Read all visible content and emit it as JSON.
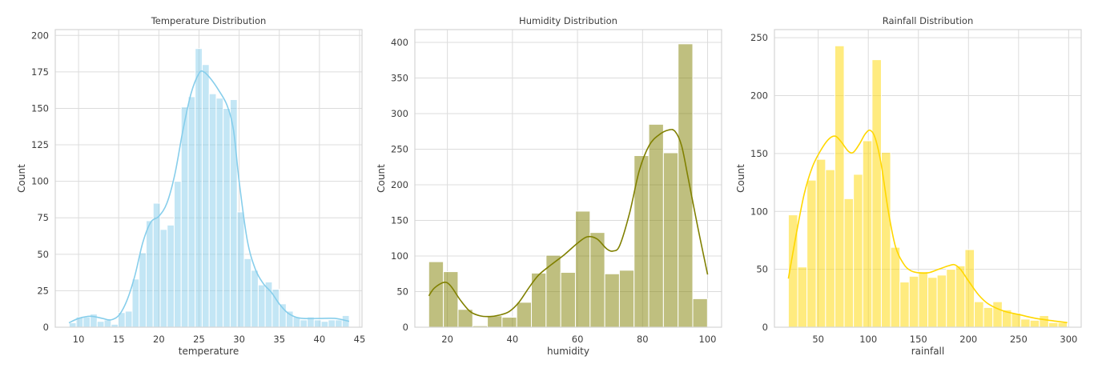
{
  "figure": {
    "panels": [
      "temperature",
      "humidity",
      "rainfall"
    ]
  },
  "chart_data": [
    {
      "id": "temperature",
      "type": "bar",
      "subtype": "histogram_with_kde",
      "title": "Temperature Distribution",
      "xlabel": "temperature",
      "ylabel": "Count",
      "xlim": [
        7.1,
        45.3
      ],
      "ylim": [
        0,
        204
      ],
      "xticks": [
        10,
        15,
        20,
        25,
        30,
        35,
        40,
        45
      ],
      "yticks": [
        0,
        25,
        50,
        75,
        100,
        125,
        150,
        175,
        200
      ],
      "grid": true,
      "bar_color": "#87ceeb",
      "line_color": "#87ceeb",
      "bin_start": 8.83,
      "bin_width": 0.872,
      "values": [
        3,
        7,
        7,
        9,
        4,
        5,
        2,
        10,
        11,
        33,
        51,
        73,
        85,
        67,
        70,
        100,
        151,
        158,
        191,
        180,
        160,
        157,
        150,
        156,
        79,
        47,
        39,
        29,
        31,
        26,
        16,
        11,
        7,
        5,
        7,
        5,
        4,
        5,
        5,
        8
      ],
      "kde": [
        [
          8.8,
          3
        ],
        [
          10,
          6
        ],
        [
          11.5,
          7.5
        ],
        [
          13,
          6
        ],
        [
          14,
          5
        ],
        [
          15,
          8
        ],
        [
          16,
          18
        ],
        [
          17,
          35
        ],
        [
          18,
          58
        ],
        [
          19,
          72
        ],
        [
          20,
          76
        ],
        [
          21,
          85
        ],
        [
          22,
          105
        ],
        [
          23,
          135
        ],
        [
          24,
          160
        ],
        [
          25,
          174
        ],
        [
          25.6,
          175
        ],
        [
          26.5,
          170
        ],
        [
          27.5,
          162
        ],
        [
          28.5,
          152
        ],
        [
          29.3,
          135
        ],
        [
          30,
          100
        ],
        [
          31,
          60
        ],
        [
          32,
          40
        ],
        [
          33,
          30
        ],
        [
          34,
          24
        ],
        [
          35,
          16
        ],
        [
          36,
          10
        ],
        [
          37,
          7
        ],
        [
          38,
          6
        ],
        [
          40,
          6
        ],
        [
          42,
          6
        ],
        [
          43.7,
          4
        ]
      ]
    },
    {
      "id": "humidity",
      "type": "bar",
      "subtype": "histogram_with_kde",
      "title": "Humidity Distribution",
      "xlabel": "humidity",
      "ylabel": "Count",
      "xlim": [
        10.0,
        104.3
      ],
      "ylim": [
        0,
        418
      ],
      "xticks": [
        20,
        40,
        60,
        80,
        100
      ],
      "yticks": [
        0,
        50,
        100,
        150,
        200,
        250,
        300,
        350,
        400
      ],
      "grid": true,
      "bar_color": "#808000",
      "line_color": "#808000",
      "bin_start": 14.26,
      "bin_width": 4.51,
      "values": [
        92,
        78,
        25,
        2,
        16,
        14,
        35,
        76,
        101,
        77,
        163,
        133,
        75,
        80,
        241,
        285,
        245,
        398,
        40
      ],
      "kde": [
        [
          14.3,
          44
        ],
        [
          16,
          55
        ],
        [
          19,
          63
        ],
        [
          21,
          58
        ],
        [
          24,
          38
        ],
        [
          27,
          22
        ],
        [
          30,
          16
        ],
        [
          33,
          15
        ],
        [
          36,
          17
        ],
        [
          39,
          22
        ],
        [
          42,
          35
        ],
        [
          45,
          55
        ],
        [
          48,
          73
        ],
        [
          52,
          88
        ],
        [
          56,
          102
        ],
        [
          60,
          118
        ],
        [
          63,
          127
        ],
        [
          66,
          124
        ],
        [
          69,
          110
        ],
        [
          71,
          107
        ],
        [
          73,
          115
        ],
        [
          76,
          160
        ],
        [
          79,
          220
        ],
        [
          82,
          255
        ],
        [
          85,
          270
        ],
        [
          88,
          277
        ],
        [
          90,
          275
        ],
        [
          92,
          255
        ],
        [
          94,
          210
        ],
        [
          97,
          140
        ],
        [
          100,
          74
        ]
      ]
    },
    {
      "id": "rainfall",
      "type": "bar",
      "subtype": "histogram_with_kde",
      "title": "Rainfall Distribution",
      "xlabel": "rainfall",
      "ylabel": "Count",
      "xlim": [
        6.3,
        312.5
      ],
      "ylim": [
        0,
        257
      ],
      "xticks": [
        50,
        100,
        150,
        200,
        250,
        300
      ],
      "yticks": [
        0,
        50,
        100,
        150,
        200,
        250
      ],
      "grid": true,
      "bar_color": "#ffd700",
      "line_color": "#ffd700",
      "bin_start": 20.21,
      "bin_width": 9.28,
      "values": [
        97,
        52,
        127,
        145,
        136,
        243,
        111,
        132,
        161,
        231,
        151,
        69,
        39,
        44,
        48,
        43,
        45,
        50,
        53,
        67,
        22,
        17,
        22,
        15,
        12,
        7,
        6,
        10,
        4,
        4
      ],
      "kde": [
        [
          20.2,
          42
        ],
        [
          28,
          80
        ],
        [
          36,
          115
        ],
        [
          44,
          138
        ],
        [
          52,
          152
        ],
        [
          60,
          162
        ],
        [
          67,
          165
        ],
        [
          73,
          160
        ],
        [
          80,
          152
        ],
        [
          85,
          151
        ],
        [
          91,
          158
        ],
        [
          97,
          167
        ],
        [
          102,
          170
        ],
        [
          107,
          163
        ],
        [
          113,
          140
        ],
        [
          120,
          100
        ],
        [
          127,
          70
        ],
        [
          135,
          55
        ],
        [
          142,
          49
        ],
        [
          150,
          47
        ],
        [
          160,
          47
        ],
        [
          170,
          50
        ],
        [
          180,
          53
        ],
        [
          186,
          54
        ],
        [
          192,
          50
        ],
        [
          200,
          40
        ],
        [
          210,
          28
        ],
        [
          220,
          20
        ],
        [
          235,
          14
        ],
        [
          250,
          11
        ],
        [
          265,
          8
        ],
        [
          280,
          6
        ],
        [
          298.6,
          4
        ]
      ]
    }
  ]
}
